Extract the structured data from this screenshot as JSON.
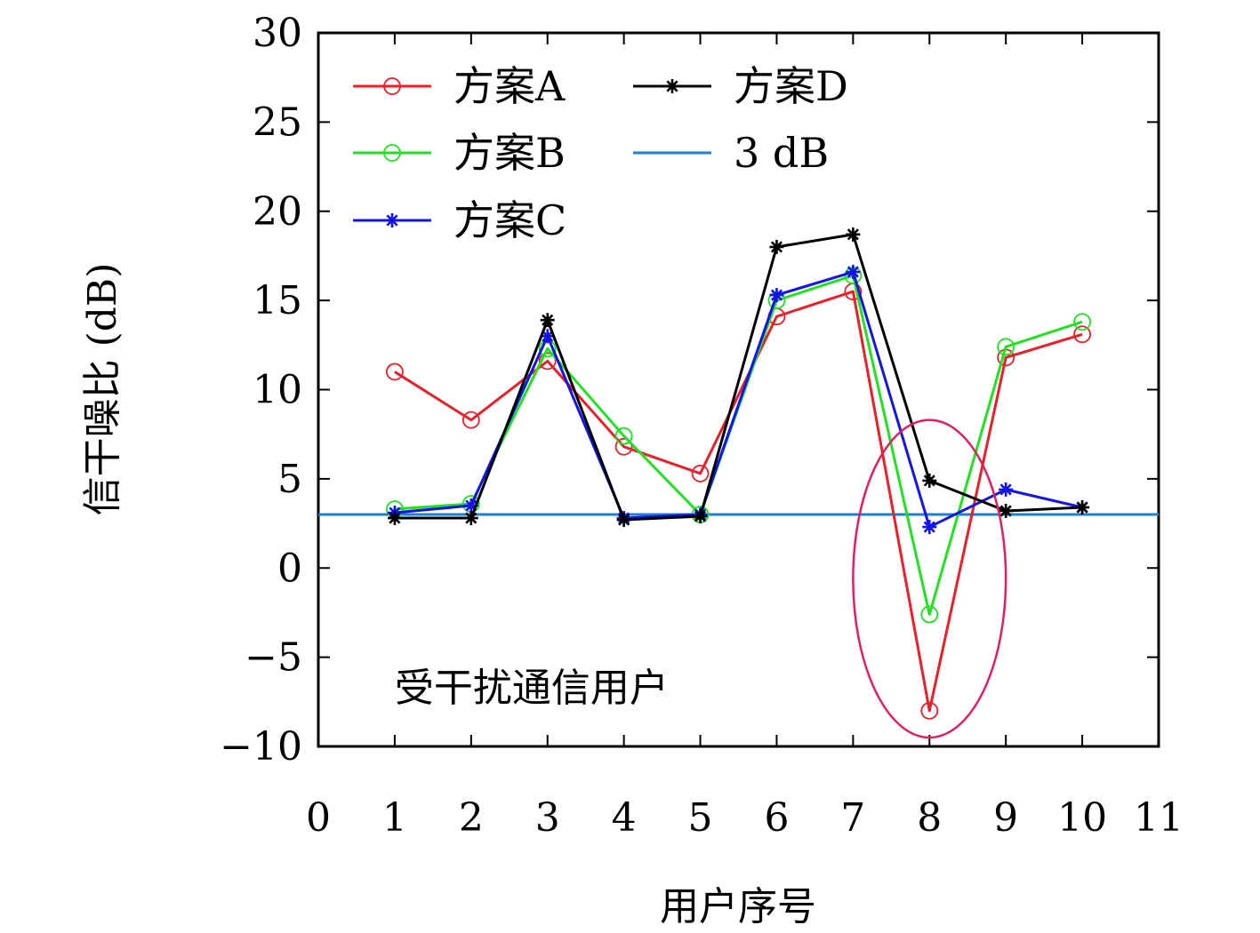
{
  "chart_data": {
    "type": "line",
    "title": "",
    "xlabel": "用户序号",
    "ylabel": "信干噪比 (dB)",
    "xlim": [
      0,
      11
    ],
    "ylim": [
      -10,
      30
    ],
    "xticks": [
      0,
      1,
      2,
      3,
      4,
      5,
      6,
      7,
      8,
      9,
      10,
      11
    ],
    "yticks": [
      -10,
      -5,
      0,
      5,
      10,
      15,
      20,
      25,
      30
    ],
    "ytick_labels": [
      "−10",
      "−5",
      "0",
      "5",
      "10",
      "15",
      "20",
      "25",
      "30"
    ],
    "grid": false,
    "legend_position": "top-left",
    "x": [
      1,
      2,
      3,
      4,
      5,
      6,
      7,
      8,
      9,
      10
    ],
    "series": [
      {
        "name": "方案A",
        "color": "#e8202a",
        "marker": "circle",
        "values": [
          11.0,
          8.3,
          11.6,
          6.8,
          5.3,
          14.1,
          15.5,
          -8.0,
          11.8,
          13.1
        ]
      },
      {
        "name": "方案B",
        "color": "#22e022",
        "marker": "circle",
        "values": [
          3.3,
          3.6,
          12.3,
          7.4,
          3.0,
          15.0,
          16.4,
          -2.6,
          12.4,
          13.8
        ]
      },
      {
        "name": "方案C",
        "color": "#1414e6",
        "marker": "star",
        "values": [
          3.1,
          3.5,
          13.0,
          2.8,
          3.0,
          15.3,
          16.6,
          2.3,
          4.4,
          3.4
        ]
      },
      {
        "name": "方案D",
        "color": "#000000",
        "marker": "star",
        "values": [
          2.8,
          2.8,
          13.9,
          2.7,
          2.9,
          18.0,
          18.7,
          4.9,
          3.2,
          3.4
        ]
      }
    ],
    "reference_line": {
      "name": "3 dB",
      "y": 3,
      "color": "#1f7fd0"
    },
    "annotations": [
      {
        "text": "受干扰通信用户",
        "x": 1.0,
        "y": -6.7
      },
      {
        "type": "ellipse",
        "cx": 8,
        "cy": -0.6,
        "rx": 1.0,
        "ry": 8.9,
        "color": "#e0205a"
      }
    ]
  }
}
